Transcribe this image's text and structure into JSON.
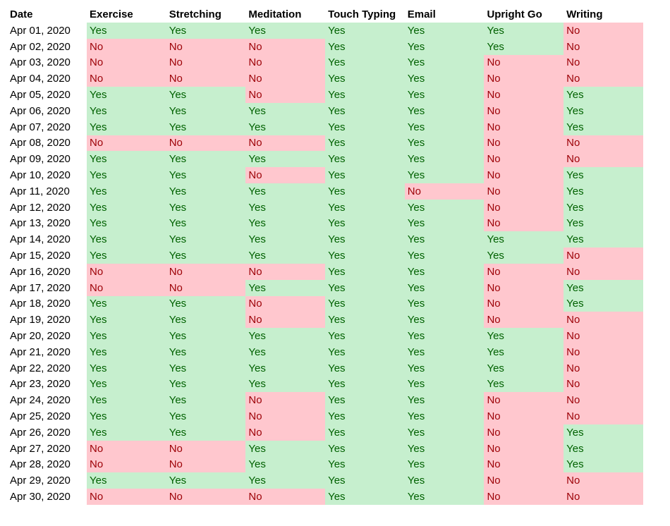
{
  "colors": {
    "yes_fill": "#c6efce",
    "yes_text": "#006100",
    "no_fill": "#ffc7ce",
    "no_text": "#9c0006"
  },
  "headers": [
    "Date",
    "Exercise",
    "Stretching",
    "Meditation",
    "Touch Typing",
    "Email",
    "Upright Go",
    "Writing"
  ],
  "rows": [
    [
      "Apr 01, 2020",
      "Yes",
      "Yes",
      "Yes",
      "Yes",
      "Yes",
      "Yes",
      "No"
    ],
    [
      "Apr 02, 2020",
      "No",
      "No",
      "No",
      "Yes",
      "Yes",
      "Yes",
      "No"
    ],
    [
      "Apr 03, 2020",
      "No",
      "No",
      "No",
      "Yes",
      "Yes",
      "No",
      "No"
    ],
    [
      "Apr 04, 2020",
      "No",
      "No",
      "No",
      "Yes",
      "Yes",
      "No",
      "No"
    ],
    [
      "Apr 05, 2020",
      "Yes",
      "Yes",
      "No",
      "Yes",
      "Yes",
      "No",
      "Yes"
    ],
    [
      "Apr 06, 2020",
      "Yes",
      "Yes",
      "Yes",
      "Yes",
      "Yes",
      "No",
      "Yes"
    ],
    [
      "Apr 07, 2020",
      "Yes",
      "Yes",
      "Yes",
      "Yes",
      "Yes",
      "No",
      "Yes"
    ],
    [
      "Apr 08, 2020",
      "No",
      "No",
      "No",
      "Yes",
      "Yes",
      "No",
      "No"
    ],
    [
      "Apr 09, 2020",
      "Yes",
      "Yes",
      "Yes",
      "Yes",
      "Yes",
      "No",
      "No"
    ],
    [
      "Apr 10, 2020",
      "Yes",
      "Yes",
      "No",
      "Yes",
      "Yes",
      "No",
      "Yes"
    ],
    [
      "Apr 11, 2020",
      "Yes",
      "Yes",
      "Yes",
      "Yes",
      "No",
      "No",
      "Yes"
    ],
    [
      "Apr 12, 2020",
      "Yes",
      "Yes",
      "Yes",
      "Yes",
      "Yes",
      "No",
      "Yes"
    ],
    [
      "Apr 13, 2020",
      "Yes",
      "Yes",
      "Yes",
      "Yes",
      "Yes",
      "No",
      "Yes"
    ],
    [
      "Apr 14, 2020",
      "Yes",
      "Yes",
      "Yes",
      "Yes",
      "Yes",
      "Yes",
      "Yes"
    ],
    [
      "Apr 15, 2020",
      "Yes",
      "Yes",
      "Yes",
      "Yes",
      "Yes",
      "Yes",
      "No"
    ],
    [
      "Apr 16, 2020",
      "No",
      "No",
      "No",
      "Yes",
      "Yes",
      "No",
      "No"
    ],
    [
      "Apr 17, 2020",
      "No",
      "No",
      "Yes",
      "Yes",
      "Yes",
      "No",
      "Yes"
    ],
    [
      "Apr 18, 2020",
      "Yes",
      "Yes",
      "No",
      "Yes",
      "Yes",
      "No",
      "Yes"
    ],
    [
      "Apr 19, 2020",
      "Yes",
      "Yes",
      "No",
      "Yes",
      "Yes",
      "No",
      "No"
    ],
    [
      "Apr 20, 2020",
      "Yes",
      "Yes",
      "Yes",
      "Yes",
      "Yes",
      "Yes",
      "No"
    ],
    [
      "Apr 21, 2020",
      "Yes",
      "Yes",
      "Yes",
      "Yes",
      "Yes",
      "Yes",
      "No"
    ],
    [
      "Apr 22, 2020",
      "Yes",
      "Yes",
      "Yes",
      "Yes",
      "Yes",
      "Yes",
      "No"
    ],
    [
      "Apr 23, 2020",
      "Yes",
      "Yes",
      "Yes",
      "Yes",
      "Yes",
      "Yes",
      "No"
    ],
    [
      "Apr 24, 2020",
      "Yes",
      "Yes",
      "No",
      "Yes",
      "Yes",
      "No",
      "No"
    ],
    [
      "Apr 25, 2020",
      "Yes",
      "Yes",
      "No",
      "Yes",
      "Yes",
      "No",
      "No"
    ],
    [
      "Apr 26, 2020",
      "Yes",
      "Yes",
      "No",
      "Yes",
      "Yes",
      "No",
      "Yes"
    ],
    [
      "Apr 27, 2020",
      "No",
      "No",
      "Yes",
      "Yes",
      "Yes",
      "No",
      "Yes"
    ],
    [
      "Apr 28, 2020",
      "No",
      "No",
      "Yes",
      "Yes",
      "Yes",
      "No",
      "Yes"
    ],
    [
      "Apr 29, 2020",
      "Yes",
      "Yes",
      "Yes",
      "Yes",
      "Yes",
      "No",
      "No"
    ],
    [
      "Apr 30, 2020",
      "No",
      "No",
      "No",
      "Yes",
      "Yes",
      "No",
      "No"
    ]
  ]
}
